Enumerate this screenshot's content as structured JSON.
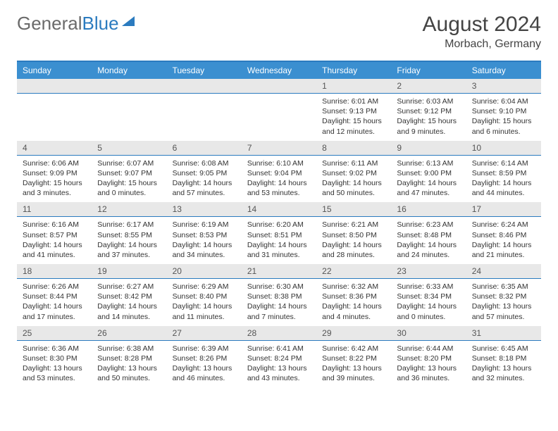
{
  "logo": {
    "part1": "General",
    "part2": "Blue"
  },
  "title": "August 2024",
  "location": "Morbach, Germany",
  "colors": {
    "header_bg": "#3b8fd0",
    "divider": "#2b7bbf",
    "num_bg": "#e8e8e8",
    "text": "#333333"
  },
  "day_headers": [
    "Sunday",
    "Monday",
    "Tuesday",
    "Wednesday",
    "Thursday",
    "Friday",
    "Saturday"
  ],
  "weeks": [
    [
      {
        "num": "",
        "sunrise": "",
        "sunset": "",
        "daylight": ""
      },
      {
        "num": "",
        "sunrise": "",
        "sunset": "",
        "daylight": ""
      },
      {
        "num": "",
        "sunrise": "",
        "sunset": "",
        "daylight": ""
      },
      {
        "num": "",
        "sunrise": "",
        "sunset": "",
        "daylight": ""
      },
      {
        "num": "1",
        "sunrise": "Sunrise: 6:01 AM",
        "sunset": "Sunset: 9:13 PM",
        "daylight": "Daylight: 15 hours and 12 minutes."
      },
      {
        "num": "2",
        "sunrise": "Sunrise: 6:03 AM",
        "sunset": "Sunset: 9:12 PM",
        "daylight": "Daylight: 15 hours and 9 minutes."
      },
      {
        "num": "3",
        "sunrise": "Sunrise: 6:04 AM",
        "sunset": "Sunset: 9:10 PM",
        "daylight": "Daylight: 15 hours and 6 minutes."
      }
    ],
    [
      {
        "num": "4",
        "sunrise": "Sunrise: 6:06 AM",
        "sunset": "Sunset: 9:09 PM",
        "daylight": "Daylight: 15 hours and 3 minutes."
      },
      {
        "num": "5",
        "sunrise": "Sunrise: 6:07 AM",
        "sunset": "Sunset: 9:07 PM",
        "daylight": "Daylight: 15 hours and 0 minutes."
      },
      {
        "num": "6",
        "sunrise": "Sunrise: 6:08 AM",
        "sunset": "Sunset: 9:05 PM",
        "daylight": "Daylight: 14 hours and 57 minutes."
      },
      {
        "num": "7",
        "sunrise": "Sunrise: 6:10 AM",
        "sunset": "Sunset: 9:04 PM",
        "daylight": "Daylight: 14 hours and 53 minutes."
      },
      {
        "num": "8",
        "sunrise": "Sunrise: 6:11 AM",
        "sunset": "Sunset: 9:02 PM",
        "daylight": "Daylight: 14 hours and 50 minutes."
      },
      {
        "num": "9",
        "sunrise": "Sunrise: 6:13 AM",
        "sunset": "Sunset: 9:00 PM",
        "daylight": "Daylight: 14 hours and 47 minutes."
      },
      {
        "num": "10",
        "sunrise": "Sunrise: 6:14 AM",
        "sunset": "Sunset: 8:59 PM",
        "daylight": "Daylight: 14 hours and 44 minutes."
      }
    ],
    [
      {
        "num": "11",
        "sunrise": "Sunrise: 6:16 AM",
        "sunset": "Sunset: 8:57 PM",
        "daylight": "Daylight: 14 hours and 41 minutes."
      },
      {
        "num": "12",
        "sunrise": "Sunrise: 6:17 AM",
        "sunset": "Sunset: 8:55 PM",
        "daylight": "Daylight: 14 hours and 37 minutes."
      },
      {
        "num": "13",
        "sunrise": "Sunrise: 6:19 AM",
        "sunset": "Sunset: 8:53 PM",
        "daylight": "Daylight: 14 hours and 34 minutes."
      },
      {
        "num": "14",
        "sunrise": "Sunrise: 6:20 AM",
        "sunset": "Sunset: 8:51 PM",
        "daylight": "Daylight: 14 hours and 31 minutes."
      },
      {
        "num": "15",
        "sunrise": "Sunrise: 6:21 AM",
        "sunset": "Sunset: 8:50 PM",
        "daylight": "Daylight: 14 hours and 28 minutes."
      },
      {
        "num": "16",
        "sunrise": "Sunrise: 6:23 AM",
        "sunset": "Sunset: 8:48 PM",
        "daylight": "Daylight: 14 hours and 24 minutes."
      },
      {
        "num": "17",
        "sunrise": "Sunrise: 6:24 AM",
        "sunset": "Sunset: 8:46 PM",
        "daylight": "Daylight: 14 hours and 21 minutes."
      }
    ],
    [
      {
        "num": "18",
        "sunrise": "Sunrise: 6:26 AM",
        "sunset": "Sunset: 8:44 PM",
        "daylight": "Daylight: 14 hours and 17 minutes."
      },
      {
        "num": "19",
        "sunrise": "Sunrise: 6:27 AM",
        "sunset": "Sunset: 8:42 PM",
        "daylight": "Daylight: 14 hours and 14 minutes."
      },
      {
        "num": "20",
        "sunrise": "Sunrise: 6:29 AM",
        "sunset": "Sunset: 8:40 PM",
        "daylight": "Daylight: 14 hours and 11 minutes."
      },
      {
        "num": "21",
        "sunrise": "Sunrise: 6:30 AM",
        "sunset": "Sunset: 8:38 PM",
        "daylight": "Daylight: 14 hours and 7 minutes."
      },
      {
        "num": "22",
        "sunrise": "Sunrise: 6:32 AM",
        "sunset": "Sunset: 8:36 PM",
        "daylight": "Daylight: 14 hours and 4 minutes."
      },
      {
        "num": "23",
        "sunrise": "Sunrise: 6:33 AM",
        "sunset": "Sunset: 8:34 PM",
        "daylight": "Daylight: 14 hours and 0 minutes."
      },
      {
        "num": "24",
        "sunrise": "Sunrise: 6:35 AM",
        "sunset": "Sunset: 8:32 PM",
        "daylight": "Daylight: 13 hours and 57 minutes."
      }
    ],
    [
      {
        "num": "25",
        "sunrise": "Sunrise: 6:36 AM",
        "sunset": "Sunset: 8:30 PM",
        "daylight": "Daylight: 13 hours and 53 minutes."
      },
      {
        "num": "26",
        "sunrise": "Sunrise: 6:38 AM",
        "sunset": "Sunset: 8:28 PM",
        "daylight": "Daylight: 13 hours and 50 minutes."
      },
      {
        "num": "27",
        "sunrise": "Sunrise: 6:39 AM",
        "sunset": "Sunset: 8:26 PM",
        "daylight": "Daylight: 13 hours and 46 minutes."
      },
      {
        "num": "28",
        "sunrise": "Sunrise: 6:41 AM",
        "sunset": "Sunset: 8:24 PM",
        "daylight": "Daylight: 13 hours and 43 minutes."
      },
      {
        "num": "29",
        "sunrise": "Sunrise: 6:42 AM",
        "sunset": "Sunset: 8:22 PM",
        "daylight": "Daylight: 13 hours and 39 minutes."
      },
      {
        "num": "30",
        "sunrise": "Sunrise: 6:44 AM",
        "sunset": "Sunset: 8:20 PM",
        "daylight": "Daylight: 13 hours and 36 minutes."
      },
      {
        "num": "31",
        "sunrise": "Sunrise: 6:45 AM",
        "sunset": "Sunset: 8:18 PM",
        "daylight": "Daylight: 13 hours and 32 minutes."
      }
    ]
  ]
}
